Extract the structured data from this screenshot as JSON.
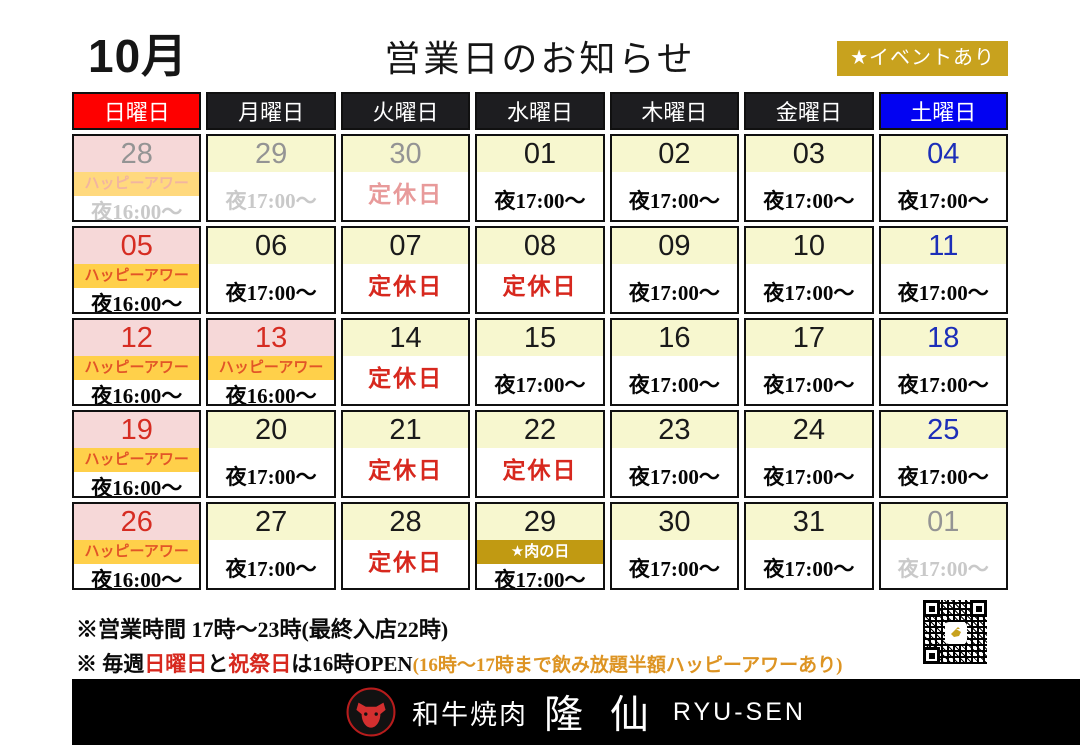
{
  "header": {
    "month": "10月",
    "title": "営業日のお知らせ",
    "event_badge": "★イベントあり"
  },
  "weekdays": [
    {
      "label": "日曜日"
    },
    {
      "label": "月曜日"
    },
    {
      "label": "火曜日"
    },
    {
      "label": "水曜日"
    },
    {
      "label": "木曜日"
    },
    {
      "label": "金曜日"
    },
    {
      "label": "土曜日"
    }
  ],
  "labels": {
    "happy_hour": "ハッピーアワー",
    "meat_day": "★肉の日",
    "closed": "定休日"
  },
  "calendar": {
    "weeks": [
      {
        "days": [
          {
            "num": "28",
            "num_color": "gray",
            "band": "pink",
            "badge": "hh",
            "body": "time",
            "time": "夜16:00〜",
            "faded": true
          },
          {
            "num": "29",
            "num_color": "gray",
            "band": "yellow",
            "badge": "",
            "body": "time",
            "time": "夜17:00〜",
            "faded": true
          },
          {
            "num": "30",
            "num_color": "gray",
            "band": "yellow",
            "badge": "",
            "body": "closed",
            "time": "",
            "faded": true
          },
          {
            "num": "01",
            "num_color": "black",
            "band": "yellow",
            "badge": "",
            "body": "time",
            "time": "夜17:00〜",
            "faded": false
          },
          {
            "num": "02",
            "num_color": "black",
            "band": "yellow",
            "badge": "",
            "body": "time",
            "time": "夜17:00〜",
            "faded": false
          },
          {
            "num": "03",
            "num_color": "black",
            "band": "yellow",
            "badge": "",
            "body": "time",
            "time": "夜17:00〜",
            "faded": false
          },
          {
            "num": "04",
            "num_color": "blue",
            "band": "yellow",
            "badge": "",
            "body": "time",
            "time": "夜17:00〜",
            "faded": false
          }
        ]
      },
      {
        "days": [
          {
            "num": "05",
            "num_color": "red",
            "band": "pink",
            "badge": "hh",
            "body": "time",
            "time": "夜16:00〜",
            "faded": false
          },
          {
            "num": "06",
            "num_color": "black",
            "band": "yellow",
            "badge": "",
            "body": "time",
            "time": "夜17:00〜",
            "faded": false
          },
          {
            "num": "07",
            "num_color": "black",
            "band": "yellow",
            "badge": "",
            "body": "closed",
            "time": "",
            "faded": false
          },
          {
            "num": "08",
            "num_color": "black",
            "band": "yellow",
            "badge": "",
            "body": "closed",
            "time": "",
            "faded": false
          },
          {
            "num": "09",
            "num_color": "black",
            "band": "yellow",
            "badge": "",
            "body": "time",
            "time": "夜17:00〜",
            "faded": false
          },
          {
            "num": "10",
            "num_color": "black",
            "band": "yellow",
            "badge": "",
            "body": "time",
            "time": "夜17:00〜",
            "faded": false
          },
          {
            "num": "11",
            "num_color": "blue",
            "band": "yellow",
            "badge": "",
            "body": "time",
            "time": "夜17:00〜",
            "faded": false
          }
        ]
      },
      {
        "days": [
          {
            "num": "12",
            "num_color": "red",
            "band": "pink",
            "badge": "hh",
            "body": "time",
            "time": "夜16:00〜",
            "faded": false
          },
          {
            "num": "13",
            "num_color": "red",
            "band": "pink",
            "badge": "hh",
            "body": "time",
            "time": "夜16:00〜",
            "faded": false
          },
          {
            "num": "14",
            "num_color": "black",
            "band": "yellow",
            "badge": "",
            "body": "closed",
            "time": "",
            "faded": false
          },
          {
            "num": "15",
            "num_color": "black",
            "band": "yellow",
            "badge": "",
            "body": "time",
            "time": "夜17:00〜",
            "faded": false
          },
          {
            "num": "16",
            "num_color": "black",
            "band": "yellow",
            "badge": "",
            "body": "time",
            "time": "夜17:00〜",
            "faded": false
          },
          {
            "num": "17",
            "num_color": "black",
            "band": "yellow",
            "badge": "",
            "body": "time",
            "time": "夜17:00〜",
            "faded": false
          },
          {
            "num": "18",
            "num_color": "blue",
            "band": "yellow",
            "badge": "",
            "body": "time",
            "time": "夜17:00〜",
            "faded": false
          }
        ]
      },
      {
        "days": [
          {
            "num": "19",
            "num_color": "red",
            "band": "pink",
            "badge": "hh",
            "body": "time",
            "time": "夜16:00〜",
            "faded": false
          },
          {
            "num": "20",
            "num_color": "black",
            "band": "yellow",
            "badge": "",
            "body": "time",
            "time": "夜17:00〜",
            "faded": false
          },
          {
            "num": "21",
            "num_color": "black",
            "band": "yellow",
            "badge": "",
            "body": "closed",
            "time": "",
            "faded": false
          },
          {
            "num": "22",
            "num_color": "black",
            "band": "yellow",
            "badge": "",
            "body": "closed",
            "time": "",
            "faded": false
          },
          {
            "num": "23",
            "num_color": "black",
            "band": "yellow",
            "badge": "",
            "body": "time",
            "time": "夜17:00〜",
            "faded": false
          },
          {
            "num": "24",
            "num_color": "black",
            "band": "yellow",
            "badge": "",
            "body": "time",
            "time": "夜17:00〜",
            "faded": false
          },
          {
            "num": "25",
            "num_color": "blue",
            "band": "yellow",
            "badge": "",
            "body": "time",
            "time": "夜17:00〜",
            "faded": false
          }
        ]
      },
      {
        "days": [
          {
            "num": "26",
            "num_color": "red",
            "band": "pink",
            "badge": "hh",
            "body": "time",
            "time": "夜16:00〜",
            "faded": false
          },
          {
            "num": "27",
            "num_color": "black",
            "band": "yellow",
            "badge": "",
            "body": "time",
            "time": "夜17:00〜",
            "faded": false
          },
          {
            "num": "28",
            "num_color": "black",
            "band": "yellow",
            "badge": "",
            "body": "closed",
            "time": "",
            "faded": false
          },
          {
            "num": "29",
            "num_color": "black",
            "band": "yellow",
            "badge": "niku",
            "body": "time",
            "time": "夜17:00〜",
            "faded": false
          },
          {
            "num": "30",
            "num_color": "black",
            "band": "yellow",
            "badge": "",
            "body": "time",
            "time": "夜17:00〜",
            "faded": false
          },
          {
            "num": "31",
            "num_color": "black",
            "band": "yellow",
            "badge": "",
            "body": "time",
            "time": "夜17:00〜",
            "faded": false
          },
          {
            "num": "01",
            "num_color": "gray",
            "band": "yellow",
            "badge": "",
            "body": "time",
            "time": "夜17:00〜",
            "faded": true
          }
        ]
      }
    ]
  },
  "notes": {
    "line1": "※営業時間 17時〜23時(最終入店22時)",
    "line2_segments": [
      {
        "text": "※ 毎週",
        "color": "black"
      },
      {
        "text": "日曜日",
        "color": "red"
      },
      {
        "text": "と",
        "color": "black"
      },
      {
        "text": "祝祭日",
        "color": "red"
      },
      {
        "text": "は16時OPEN",
        "color": "black"
      },
      {
        "text": "(16時〜17時まで飲み放題半額ハッピーアワーあり)",
        "color": "orange"
      }
    ]
  },
  "footer": {
    "genre": "和牛焼肉",
    "name": "隆 仙",
    "romaji": "RYU-SEN"
  },
  "icons": {
    "qr": "qr-code",
    "logo": "cow-head-logo"
  },
  "colors": {
    "sunday_red": "#fe0000",
    "saturday_blue": "#0202f2",
    "weekday_black": "#1d1d20",
    "band_pink": "#f6d8d8",
    "band_yellow": "#f7f7cf",
    "hh_bg": "#ffd04a",
    "hh_text": "#e25527",
    "gold": "#c19a12",
    "event_gold": "#c8a21e",
    "closed_red": "#d7281e",
    "num_red": "#d62c22",
    "num_blue": "#1c2eb8"
  }
}
